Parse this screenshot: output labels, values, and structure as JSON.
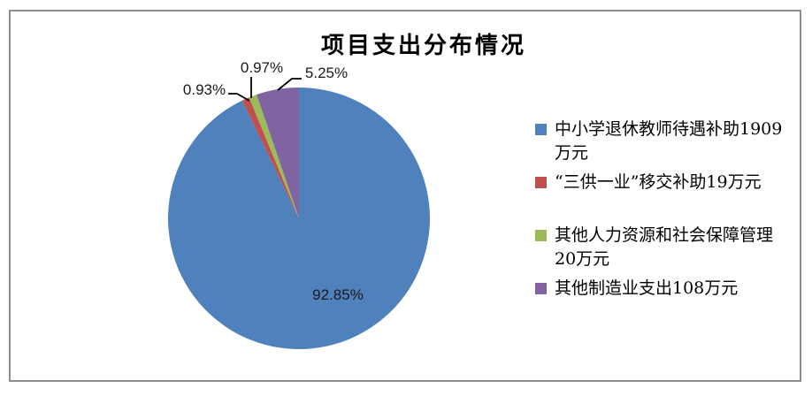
{
  "chart_data": {
    "type": "pie",
    "title": "项目支出分布情况",
    "unit": "万元",
    "legend_position": "right",
    "start_angle_deg": 0,
    "direction": "clockwise",
    "segments": [
      {
        "name": "中小学退休教师待遇补助",
        "label": "中小学退休教师待遇补助1909\n万元",
        "value": 1909,
        "pct": 92.85,
        "pct_label": "92.85%",
        "color": "#4F81BD"
      },
      {
        "name": "“三供一业”移交补助",
        "label": "“三供一业”移交补助19万元",
        "value": 19,
        "pct": 0.93,
        "pct_label": "0.93%",
        "color": "#C0504D"
      },
      {
        "name": "其他人力资源和社会保障管理",
        "label": "其他人力资源和社会保障管理\n20万元",
        "value": 20,
        "pct": 0.97,
        "pct_label": "0.97%",
        "color": "#9BBB59"
      },
      {
        "name": "其他制造业支出",
        "label": "其他制造业支出108万元",
        "value": 108,
        "pct": 5.25,
        "pct_label": "5.25%",
        "color": "#8064A2"
      }
    ]
  }
}
